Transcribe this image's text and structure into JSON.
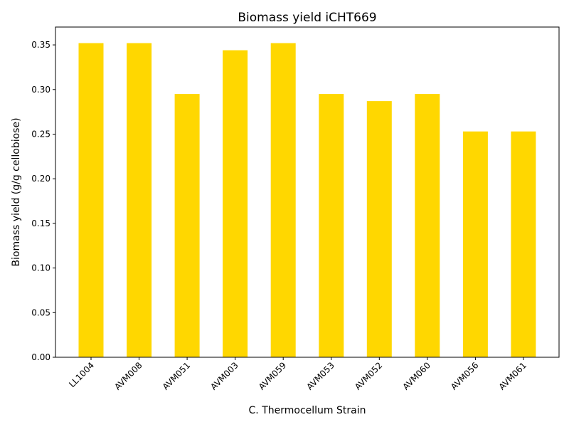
{
  "chart_data": {
    "type": "bar",
    "title": "Biomass yield iCHT669",
    "xlabel": "C. Thermocellum Strain",
    "ylabel": "Biomass yield (g/g cellobiose)",
    "categories": [
      "LL1004",
      "AVM008",
      "AVM051",
      "AVM003",
      "AVM059",
      "AVM053",
      "AVM052",
      "AVM060",
      "AVM056",
      "AVM061"
    ],
    "values": [
      0.352,
      0.352,
      0.295,
      0.344,
      0.352,
      0.295,
      0.287,
      0.295,
      0.253,
      0.253
    ],
    "ylim": [
      0,
      0.37
    ],
    "yticks": [
      "0.00",
      "0.05",
      "0.10",
      "0.15",
      "0.20",
      "0.25",
      "0.30",
      "0.35"
    ],
    "bar_color": "#ffd700",
    "grid": false,
    "legend": "none"
  }
}
